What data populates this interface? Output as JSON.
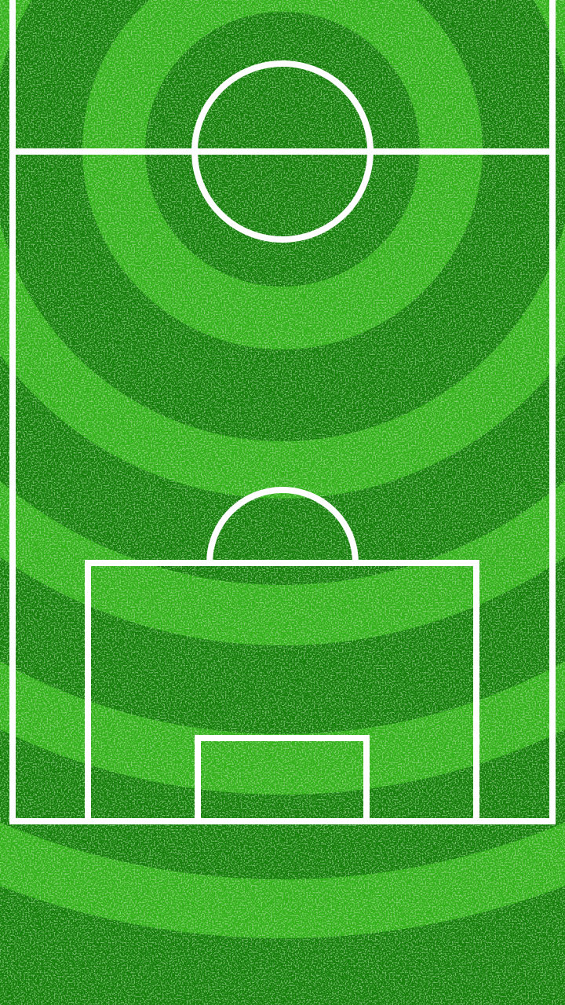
{
  "pitch": {
    "colors": {
      "grass_dark": "#157f0a",
      "grass_light": "#33b11a",
      "speckle": "#7fd07a",
      "line": "#ffffff"
    },
    "pattern": "concentric-rings",
    "view": "half-pitch"
  }
}
